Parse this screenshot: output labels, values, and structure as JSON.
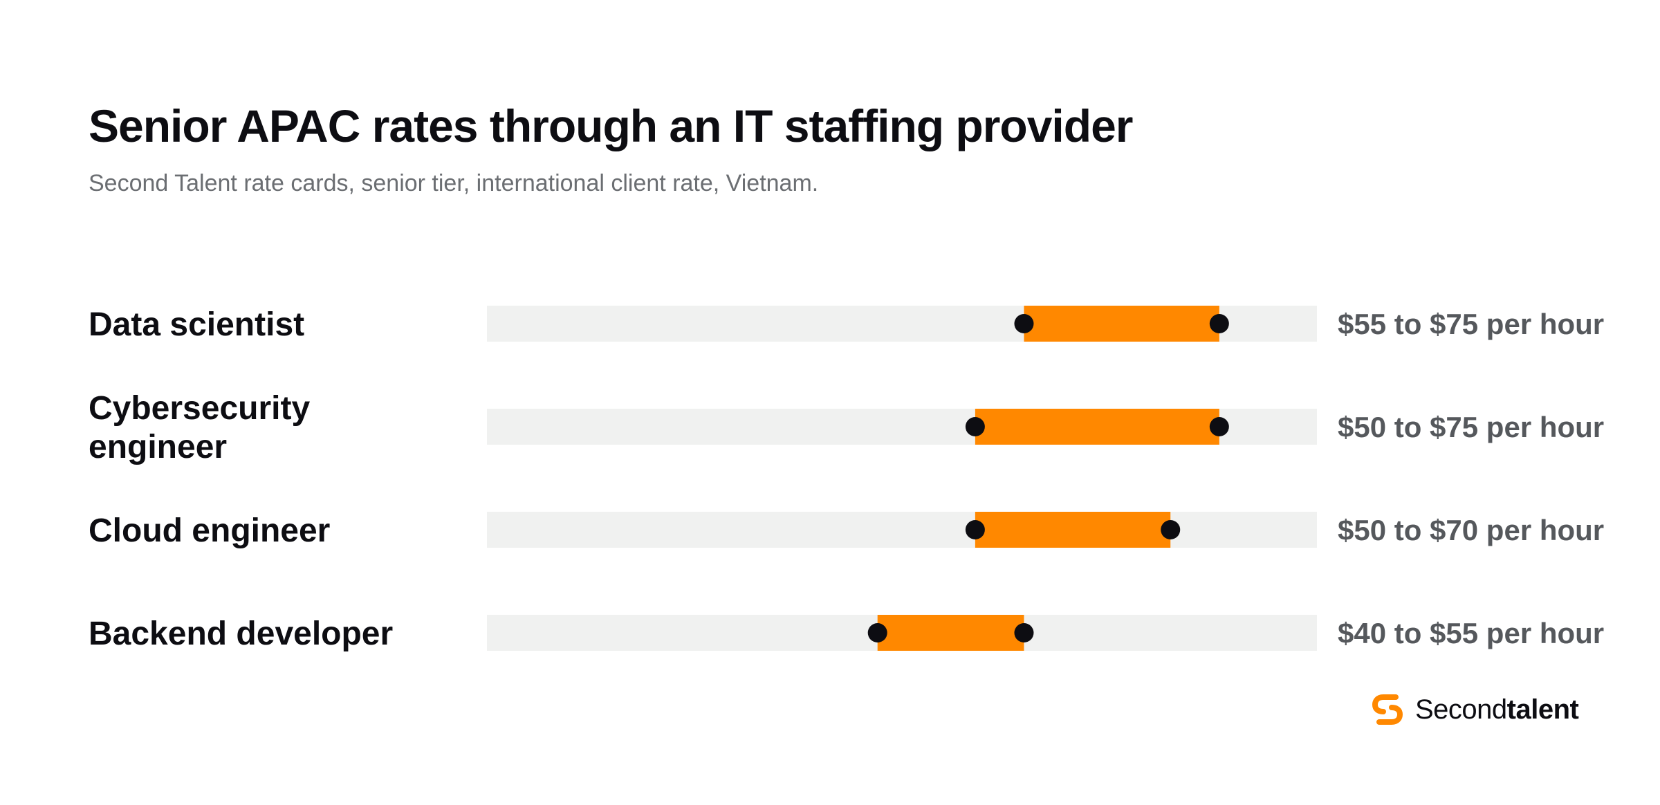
{
  "header": {
    "title": "Senior APAC rates through an IT staffing provider",
    "subtitle": "Second Talent rate cards, senior tier, international client rate, Vietnam."
  },
  "chart_data": {
    "type": "range-bar",
    "title": "Senior APAC rates through an IT staffing provider",
    "subtitle": "Second Talent rate cards, senior tier, international client rate, Vietnam.",
    "xlim": [
      0,
      85
    ],
    "unit": "USD per hour",
    "grid": false,
    "legend": "none",
    "colors": {
      "track": "#f0f1f0",
      "range": "#ff8800",
      "endpoint": "#0d0d12"
    },
    "rows": [
      {
        "label_lines": [
          "Data scientist"
        ],
        "low": 55,
        "high": 75,
        "value_label": "$55 to $75 per hour"
      },
      {
        "label_lines": [
          "Cybersecurity",
          "engineer"
        ],
        "low": 50,
        "high": 75,
        "value_label": "$50 to $75 per hour"
      },
      {
        "label_lines": [
          "Cloud engineer"
        ],
        "low": 50,
        "high": 70,
        "value_label": "$50 to $70 per hour"
      },
      {
        "label_lines": [
          "Backend developer"
        ],
        "low": 40,
        "high": 55,
        "value_label": "$40 to $55 per hour"
      }
    ]
  },
  "logo": {
    "icon": "second-talent-s-logo-icon",
    "text_light": "Second",
    "text_bold": "talent",
    "color": "#ff8800"
  }
}
